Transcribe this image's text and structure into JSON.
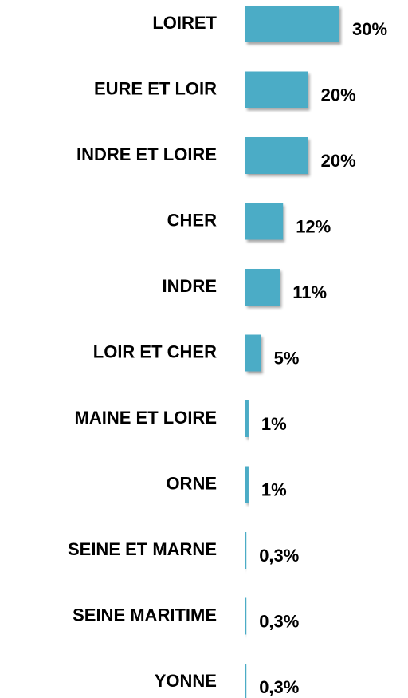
{
  "chart_data": {
    "type": "barh",
    "categories": [
      "LOIRET",
      "EURE ET LOIR",
      "INDRE ET LOIRE",
      "CHER",
      "INDRE",
      "LOIR ET CHER",
      "MAINE ET LOIRE",
      "ORNE",
      "SEINE ET MARNE",
      "SEINE MARITIME",
      "YONNE"
    ],
    "values": [
      30,
      20,
      20,
      12,
      11,
      5,
      1,
      1,
      0.3,
      0.3,
      0.3
    ],
    "value_labels": [
      "30%",
      "20%",
      "20%",
      "12%",
      "11%",
      "5%",
      "1%",
      "1%",
      "0,3%",
      "0,3%",
      "0,3%"
    ],
    "color": "#4bacc6"
  }
}
